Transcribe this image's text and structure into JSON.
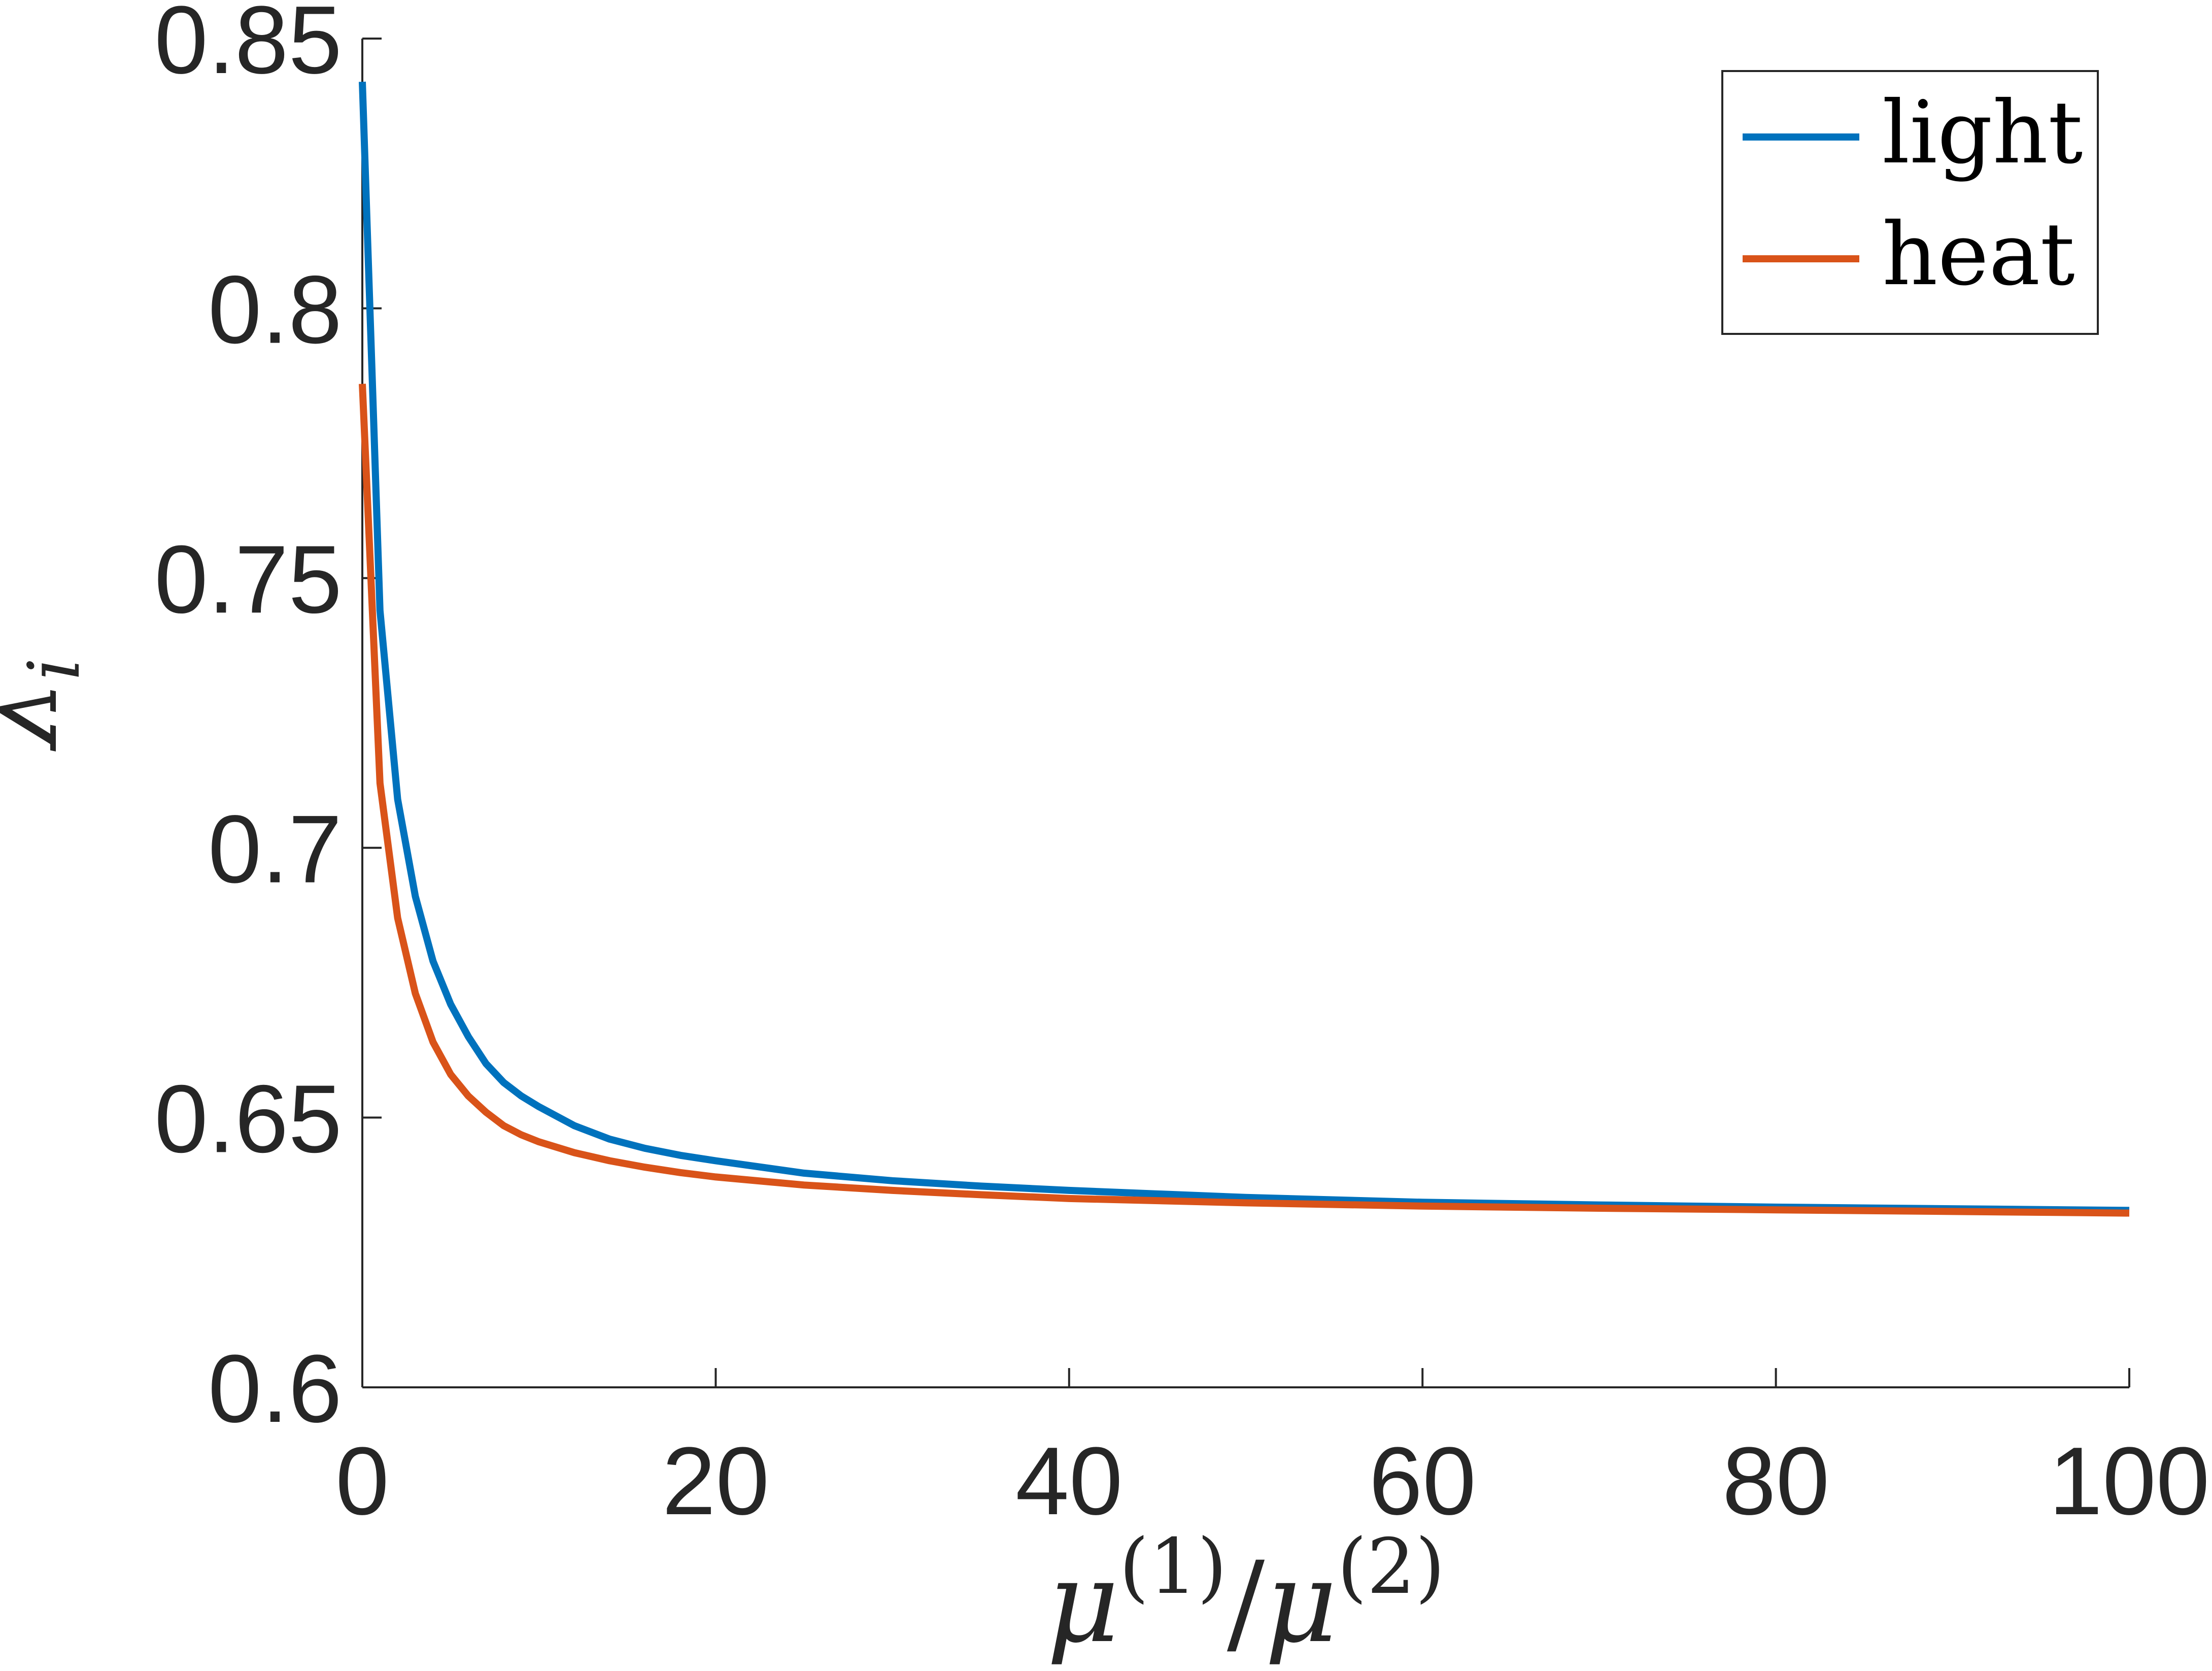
{
  "chart_data": {
    "type": "line",
    "xlabel": {
      "base": "μ",
      "sup1": "(1)",
      "sep": "/",
      "base2": "μ",
      "sup2": "(2)"
    },
    "ylabel": {
      "base": "λ",
      "sub": "i"
    },
    "xlim": [
      0,
      100
    ],
    "ylim": [
      0.6,
      0.85
    ],
    "x_ticks": [
      0,
      20,
      40,
      60,
      80,
      100
    ],
    "x_tick_labels": [
      "0",
      "20",
      "40",
      "60",
      "80",
      "100"
    ],
    "y_ticks": [
      0.6,
      0.65,
      0.7,
      0.75,
      0.8,
      0.85
    ],
    "y_tick_labels": [
      "0.6",
      "0.65",
      "0.7",
      "0.75",
      "0.8",
      "0.85"
    ],
    "grid": false,
    "legend_position": "top-right",
    "x": [
      0,
      1,
      2,
      3,
      4,
      5,
      6,
      7,
      8,
      9,
      10,
      12,
      14,
      16,
      18,
      20,
      25,
      30,
      35,
      40,
      50,
      60,
      70,
      80,
      90,
      100
    ],
    "series": [
      {
        "name": "light",
        "color": "#0072BD",
        "values": [
          0.842,
          0.744,
          0.709,
          0.691,
          0.679,
          0.671,
          0.665,
          0.66,
          0.6565,
          0.654,
          0.652,
          0.6485,
          0.646,
          0.6443,
          0.643,
          0.642,
          0.6397,
          0.6383,
          0.6373,
          0.6365,
          0.6352,
          0.6343,
          0.6338,
          0.6334,
          0.6331,
          0.6328
        ]
      },
      {
        "name": "heat",
        "color": "#D95319",
        "values": [
          0.786,
          0.712,
          0.687,
          0.673,
          0.664,
          0.658,
          0.654,
          0.651,
          0.6485,
          0.6468,
          0.6455,
          0.6435,
          0.642,
          0.6408,
          0.6398,
          0.639,
          0.6375,
          0.6365,
          0.6357,
          0.635,
          0.6342,
          0.6336,
          0.6332,
          0.6329,
          0.6326,
          0.6323
        ]
      }
    ]
  }
}
